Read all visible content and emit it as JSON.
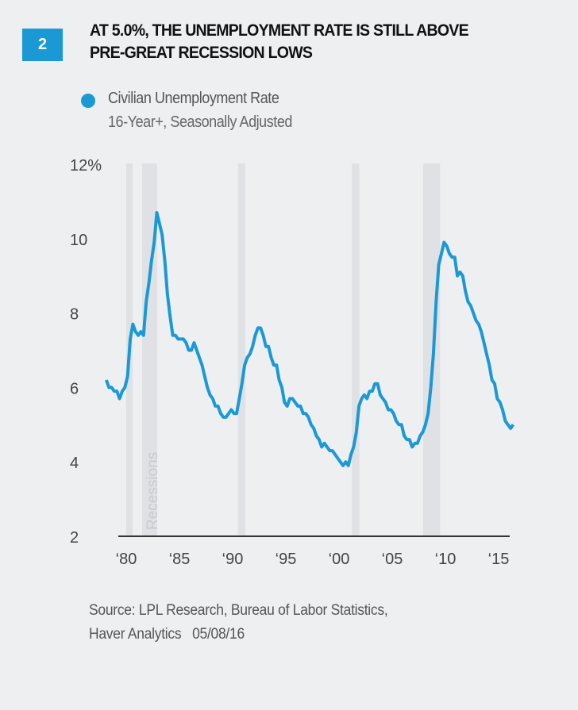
{
  "header": {
    "figure_number": "2",
    "title_line1": "AT 5.0%, THE UNEMPLOYMENT RATE IS STILL ABOVE",
    "title_line2": "PRE-GREAT RECESSION LOWS"
  },
  "legend": {
    "label": "Civilian Unemployment Rate",
    "sublabel": "16-Year+, Seasonally Adjusted"
  },
  "source": {
    "line1": "Source: LPL Research, Bureau of Labor Statistics,",
    "line2": "Haver Analytics   05/08/16"
  },
  "colors": {
    "series": "#1b99d5",
    "recession": "#e0e1e4",
    "badge": "#1b99d5"
  },
  "chart_data": {
    "type": "line",
    "title": "AT 5.0%, THE UNEMPLOYMENT RATE IS STILL ABOVE PRE-GREAT RECESSION LOWS",
    "xlabel": "",
    "ylabel": "",
    "ylim": [
      2,
      12
    ],
    "xlim": [
      1978,
      2016.5
    ],
    "y_ticks": [
      {
        "v": 12,
        "label": "12%"
      },
      {
        "v": 10,
        "label": "10"
      },
      {
        "v": 8,
        "label": "8"
      },
      {
        "v": 6,
        "label": "6"
      },
      {
        "v": 4,
        "label": "4"
      },
      {
        "v": 2,
        "label": "2"
      }
    ],
    "x_ticks": [
      {
        "v": 1980,
        "label": "‘80"
      },
      {
        "v": 1985,
        "label": "‘85"
      },
      {
        "v": 1990,
        "label": "‘90"
      },
      {
        "v": 1995,
        "label": "‘95"
      },
      {
        "v": 2000,
        "label": "‘00"
      },
      {
        "v": 2005,
        "label": "‘05"
      },
      {
        "v": 2010,
        "label": "‘10"
      },
      {
        "v": 2015,
        "label": "‘15"
      }
    ],
    "recession_label": "Recessions",
    "recessions": [
      [
        1980.0,
        1980.5
      ],
      [
        1981.5,
        1982.9
      ],
      [
        1990.5,
        1991.2
      ],
      [
        2001.2,
        2001.9
      ],
      [
        2007.9,
        2009.5
      ]
    ],
    "series": [
      {
        "name": "Civilian Unemployment Rate",
        "start_year": 1978,
        "frequency": "quarterly",
        "values": [
          6.2,
          6.0,
          6.0,
          5.9,
          5.9,
          5.7,
          5.9,
          6.0,
          6.3,
          7.3,
          7.7,
          7.5,
          7.4,
          7.5,
          7.4,
          8.3,
          8.8,
          9.4,
          9.9,
          10.7,
          10.4,
          10.1,
          9.4,
          8.5,
          7.9,
          7.4,
          7.4,
          7.3,
          7.3,
          7.3,
          7.2,
          7.0,
          7.0,
          7.2,
          7.0,
          6.8,
          6.6,
          6.3,
          6.0,
          5.8,
          5.7,
          5.5,
          5.5,
          5.3,
          5.2,
          5.2,
          5.3,
          5.4,
          5.3,
          5.3,
          5.7,
          6.1,
          6.6,
          6.8,
          6.9,
          7.1,
          7.4,
          7.6,
          7.6,
          7.4,
          7.1,
          7.1,
          6.8,
          6.6,
          6.6,
          6.2,
          6.0,
          5.6,
          5.5,
          5.7,
          5.7,
          5.6,
          5.5,
          5.5,
          5.3,
          5.3,
          5.2,
          5.0,
          4.9,
          4.7,
          4.6,
          4.4,
          4.5,
          4.4,
          4.3,
          4.3,
          4.2,
          4.1,
          4.0,
          3.9,
          4.0,
          3.9,
          4.2,
          4.4,
          4.8,
          5.5,
          5.7,
          5.8,
          5.7,
          5.9,
          5.9,
          6.1,
          6.1,
          5.8,
          5.7,
          5.6,
          5.4,
          5.4,
          5.3,
          5.1,
          5.0,
          5.0,
          4.7,
          4.6,
          4.6,
          4.4,
          4.5,
          4.5,
          4.7,
          4.8,
          5.0,
          5.3,
          6.0,
          6.9,
          8.3,
          9.3,
          9.6,
          9.9,
          9.8,
          9.6,
          9.5,
          9.5,
          9.0,
          9.1,
          9.0,
          8.6,
          8.3,
          8.2,
          8.0,
          7.8,
          7.7,
          7.5,
          7.2,
          6.9,
          6.6,
          6.2,
          6.1,
          5.7,
          5.6,
          5.4,
          5.1,
          5.0,
          4.9,
          5.0
        ]
      }
    ]
  }
}
